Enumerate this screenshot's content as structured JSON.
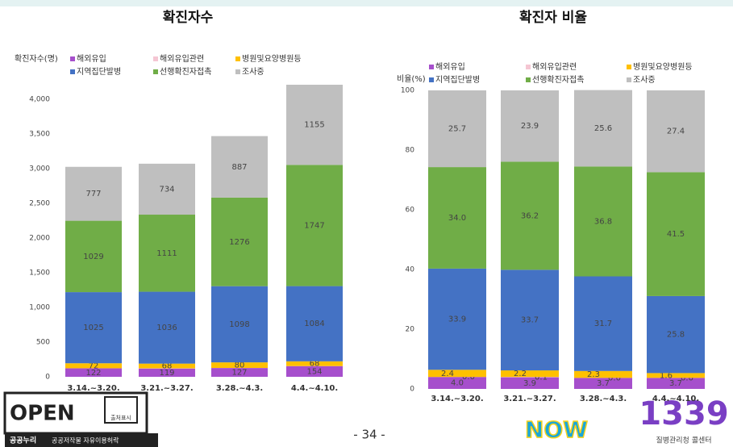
{
  "chart_data": [
    {
      "type": "stacked-bar",
      "title": "확진자수",
      "ylabel": "확진자수(명)",
      "categories": [
        "3.14.~3.20.",
        "3.21.~3.27.",
        "3.28.~4.3.",
        "4.4.~4.10."
      ],
      "ylim": [
        0,
        4250
      ],
      "yticks": [
        0,
        500,
        {
          "value": 1000,
          "label": "1,000"
        },
        {
          "value": 1500,
          "label": "1,500"
        },
        {
          "value": 2000,
          "label": "2,000"
        },
        {
          "value": 2500,
          "label": "2,500"
        },
        {
          "value": 3000,
          "label": "3,000"
        },
        {
          "value": 3500,
          "label": "3,500"
        },
        {
          "value": 4000,
          "label": "4,000"
        }
      ],
      "series": [
        {
          "name": "해외유입",
          "color": "#a64fcc",
          "values": [
            122,
            119,
            127,
            154
          ]
        },
        {
          "name": "해외유입관련",
          "color": "#f5c6d3",
          "values": [
            1,
            3,
            1,
            1
          ],
          "labels": false
        },
        {
          "name": "병원및요양병원등",
          "color": "#ffc000",
          "values": [
            72,
            68,
            80,
            68
          ]
        },
        {
          "name": "지역집단발병",
          "color": "#4472c4",
          "values": [
            1025,
            1036,
            1098,
            1084
          ]
        },
        {
          "name": "선행확진자접촉",
          "color": "#70ad47",
          "values": [
            1029,
            1111,
            1276,
            1747
          ]
        },
        {
          "name": "조사중",
          "color": "#bfbfbf",
          "values": [
            777,
            734,
            887,
            1155
          ]
        }
      ]
    },
    {
      "type": "stacked-bar",
      "title": "확진자 비율",
      "ylabel": "비율(%)",
      "categories": [
        "3.14.~3.20.",
        "3.21.~3.27.",
        "3.28.~4.3.",
        "4.4.~4.10."
      ],
      "ylim": [
        0,
        100
      ],
      "yticks": [
        0,
        20,
        40,
        60,
        80,
        100
      ],
      "series": [
        {
          "name": "해외유입",
          "color": "#a64fcc",
          "values": [
            4.0,
            3.9,
            3.7,
            3.7
          ],
          "value_labels": [
            "4.0",
            "3.9",
            "3.7",
            "3.7"
          ]
        },
        {
          "name": "해외유입관련",
          "color": "#f5c6d3",
          "values": [
            0.0,
            0.1,
            0.0,
            0.0
          ],
          "value_labels": [
            "0.0",
            "0.1",
            "0.0",
            "0.0"
          ]
        },
        {
          "name": "병원및요양병원등",
          "color": "#ffc000",
          "values": [
            2.4,
            2.2,
            2.3,
            1.6
          ],
          "value_labels": [
            "2.4",
            "2.2",
            "2.3",
            "1.6"
          ]
        },
        {
          "name": "지역집단발병",
          "color": "#4472c4",
          "values": [
            33.9,
            33.7,
            31.7,
            25.8
          ],
          "value_labels": [
            "33.9",
            "33.7",
            "31.7",
            "25.8"
          ]
        },
        {
          "name": "선행확진자접촉",
          "color": "#70ad47",
          "values": [
            34.0,
            36.2,
            36.8,
            41.5
          ],
          "value_labels": [
            "34.0",
            "36.2",
            "36.8",
            "41.5"
          ]
        },
        {
          "name": "조사중",
          "color": "#bfbfbf",
          "values": [
            25.7,
            23.9,
            25.6,
            27.4
          ],
          "value_labels": [
            "25.7",
            "23.9",
            "25.6",
            "27.4"
          ]
        }
      ]
    }
  ],
  "footer": {
    "page_number": "- 34 -",
    "open_logo": "OPEN",
    "open_badge": "출처표시",
    "open_caption_brand": "공공누리",
    "open_caption": "공공저작물 자유이용허락",
    "now_logo": "NOW",
    "hotline": "1339",
    "hotline_caption": "질병관리청 콜센터"
  }
}
